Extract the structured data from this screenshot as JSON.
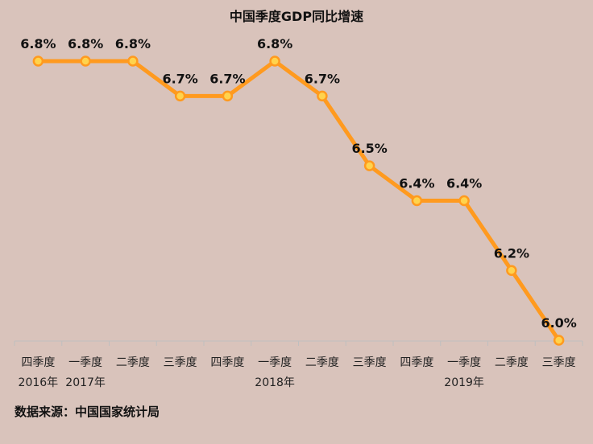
{
  "chart_data": {
    "type": "line",
    "title": "中国季度GDP同比增速",
    "categories": [
      "四季度",
      "一季度",
      "二季度",
      "三季度",
      "四季度",
      "一季度",
      "二季度",
      "三季度",
      "四季度",
      "一季度",
      "二季度",
      "三季度"
    ],
    "year_labels": [
      "2016年",
      "2017年",
      "",
      "",
      "",
      "2018年",
      "",
      "",
      "",
      "2019年",
      "",
      ""
    ],
    "series": [
      {
        "name": "GDP同比增速",
        "values": [
          6.8,
          6.8,
          6.8,
          6.7,
          6.7,
          6.8,
          6.7,
          6.5,
          6.4,
          6.4,
          6.2,
          6.0
        ],
        "labels": [
          "6.8%",
          "6.8%",
          "6.8%",
          "6.7%",
          "6.7%",
          "6.8%",
          "6.7%",
          "6.5%",
          "6.4%",
          "6.4%",
          "6.2%",
          "6.0%"
        ]
      }
    ],
    "ylim": [
      6.0,
      6.8
    ],
    "grid": false,
    "colors": {
      "line": "#ff9a1f",
      "marker_fill": "#ffd34d",
      "marker_stroke": "#ff9a1f",
      "axis": "#bfbfbf",
      "background": "#d9c3bb"
    }
  },
  "source_text": "数据来源：中国国家统计局"
}
